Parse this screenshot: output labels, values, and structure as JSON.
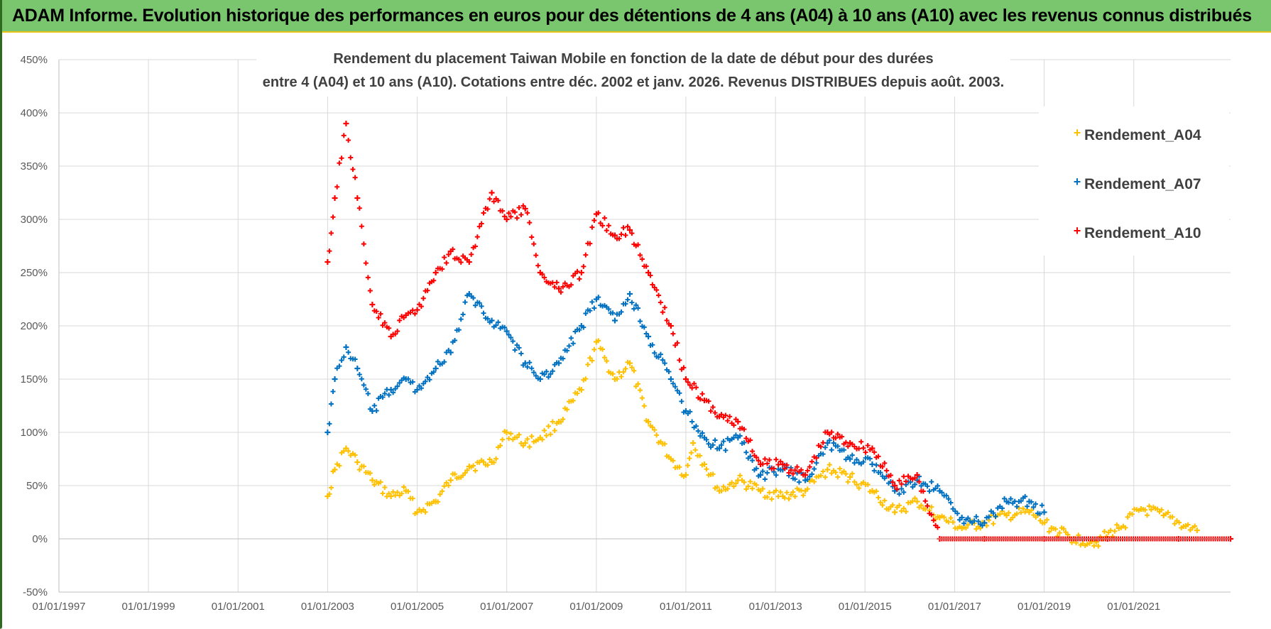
{
  "banner": {
    "text": "ADAM Informe. Evolution historique des performances en euros pour des détentions de 4 ans (A04) à 10 ans (A10) avec les revenus connus distribués"
  },
  "colors": {
    "banner_bg": "#79c66e",
    "A04": "#ffc000",
    "A07": "#0070c0",
    "A10": "#ff0000",
    "grid": "#d9d9d9"
  },
  "chart_data": {
    "type": "scatter",
    "title_lines": [
      "Rendement du placement Taiwan Mobile  en fonction de la date de début pour des durées",
      "entre 4 (A04) et 10 ans (A10). Cotations entre déc. 2002 et janv. 2026. Revenus DISTRIBUES depuis août. 2003."
    ],
    "xlabel": "",
    "ylabel": "",
    "x_ticks": [
      "01/01/1997",
      "01/01/1999",
      "01/01/2001",
      "01/01/2003",
      "01/01/2005",
      "01/01/2007",
      "01/01/2009",
      "01/01/2011",
      "01/01/2013",
      "01/01/2015",
      "01/01/2017",
      "01/01/2019",
      "01/01/2021"
    ],
    "x_range": [
      "1997-01-01",
      "2023-03-01"
    ],
    "y_ticks": [
      "-50%",
      "0%",
      "50%",
      "100%",
      "150%",
      "200%",
      "250%",
      "300%",
      "350%",
      "400%",
      "450%"
    ],
    "ylim": [
      -50,
      450
    ],
    "grid": true,
    "legend_position": "right",
    "marker": "+",
    "series": [
      {
        "name": "Rendement_A04",
        "color": "#ffc000",
        "points": [
          [
            "2003-01-01",
            40
          ],
          [
            "2003-03-01",
            65
          ],
          [
            "2003-06-01",
            85
          ],
          [
            "2003-09-01",
            72
          ],
          [
            "2004-01-01",
            55
          ],
          [
            "2004-06-01",
            40
          ],
          [
            "2004-10-01",
            45
          ],
          [
            "2005-01-01",
            25
          ],
          [
            "2005-06-01",
            35
          ],
          [
            "2005-10-01",
            55
          ],
          [
            "2006-03-01",
            68
          ],
          [
            "2006-09-01",
            72
          ],
          [
            "2007-01-01",
            100
          ],
          [
            "2007-06-01",
            90
          ],
          [
            "2007-10-01",
            95
          ],
          [
            "2008-03-01",
            110
          ],
          [
            "2008-09-01",
            140
          ],
          [
            "2009-01-01",
            185
          ],
          [
            "2009-06-01",
            150
          ],
          [
            "2009-10-01",
            165
          ],
          [
            "2010-03-01",
            110
          ],
          [
            "2010-09-01",
            75
          ],
          [
            "2011-01-01",
            60
          ],
          [
            "2011-03-01",
            90
          ],
          [
            "2011-06-01",
            70
          ],
          [
            "2011-10-01",
            45
          ],
          [
            "2012-03-01",
            55
          ],
          [
            "2012-09-01",
            45
          ],
          [
            "2013-03-01",
            40
          ],
          [
            "2013-09-01",
            45
          ],
          [
            "2014-03-01",
            65
          ],
          [
            "2014-09-01",
            58
          ],
          [
            "2015-03-01",
            45
          ],
          [
            "2015-09-01",
            25
          ],
          [
            "2016-03-01",
            35
          ],
          [
            "2016-09-01",
            20
          ],
          [
            "2017-03-01",
            10
          ],
          [
            "2017-09-01",
            15
          ],
          [
            "2018-03-01",
            22
          ],
          [
            "2018-09-01",
            25
          ],
          [
            "2019-03-01",
            10
          ],
          [
            "2019-09-01",
            0
          ],
          [
            "2020-03-01",
            -3
          ],
          [
            "2020-09-01",
            10
          ],
          [
            "2021-03-01",
            28
          ],
          [
            "2021-09-01",
            22
          ],
          [
            "2022-03-01",
            12
          ],
          [
            "2022-06-01",
            8
          ]
        ]
      },
      {
        "name": "Rendement_A07",
        "color": "#0070c0",
        "points": [
          [
            "2003-01-01",
            100
          ],
          [
            "2003-03-01",
            150
          ],
          [
            "2003-06-01",
            180
          ],
          [
            "2003-09-01",
            160
          ],
          [
            "2004-01-01",
            120
          ],
          [
            "2004-06-01",
            140
          ],
          [
            "2004-10-01",
            150
          ],
          [
            "2005-01-01",
            140
          ],
          [
            "2005-06-01",
            160
          ],
          [
            "2005-10-01",
            175
          ],
          [
            "2006-03-01",
            230
          ],
          [
            "2006-09-01",
            205
          ],
          [
            "2007-01-01",
            195
          ],
          [
            "2007-06-01",
            165
          ],
          [
            "2007-10-01",
            150
          ],
          [
            "2008-03-01",
            165
          ],
          [
            "2008-09-01",
            200
          ],
          [
            "2009-01-01",
            225
          ],
          [
            "2009-06-01",
            205
          ],
          [
            "2009-10-01",
            230
          ],
          [
            "2010-03-01",
            190
          ],
          [
            "2010-09-01",
            150
          ],
          [
            "2011-01-01",
            120
          ],
          [
            "2011-06-01",
            95
          ],
          [
            "2011-10-01",
            85
          ],
          [
            "2012-03-01",
            95
          ],
          [
            "2012-09-01",
            60
          ],
          [
            "2013-03-01",
            65
          ],
          [
            "2013-09-01",
            55
          ],
          [
            "2014-03-01",
            90
          ],
          [
            "2014-09-01",
            75
          ],
          [
            "2015-03-01",
            70
          ],
          [
            "2015-09-01",
            45
          ],
          [
            "2016-03-01",
            55
          ],
          [
            "2016-09-01",
            45
          ],
          [
            "2017-03-01",
            20
          ],
          [
            "2017-09-01",
            15
          ],
          [
            "2018-03-01",
            35
          ],
          [
            "2018-09-01",
            35
          ],
          [
            "2019-01-01",
            25
          ]
        ]
      },
      {
        "name": "Rendement_A10",
        "color": "#ff0000",
        "points": [
          [
            "2003-01-01",
            260
          ],
          [
            "2003-03-01",
            320
          ],
          [
            "2003-06-01",
            390
          ],
          [
            "2003-09-01",
            320
          ],
          [
            "2004-01-01",
            220
          ],
          [
            "2004-06-01",
            190
          ],
          [
            "2004-10-01",
            210
          ],
          [
            "2005-01-01",
            215
          ],
          [
            "2005-06-01",
            250
          ],
          [
            "2005-10-01",
            270
          ],
          [
            "2006-03-01",
            260
          ],
          [
            "2006-09-01",
            325
          ],
          [
            "2007-01-01",
            300
          ],
          [
            "2007-06-01",
            310
          ],
          [
            "2007-10-01",
            250
          ],
          [
            "2008-03-01",
            235
          ],
          [
            "2008-09-01",
            250
          ],
          [
            "2009-01-01",
            305
          ],
          [
            "2009-06-01",
            285
          ],
          [
            "2009-10-01",
            290
          ],
          [
            "2010-03-01",
            250
          ],
          [
            "2010-09-01",
            200
          ],
          [
            "2011-01-01",
            150
          ],
          [
            "2011-06-01",
            130
          ],
          [
            "2011-10-01",
            115
          ],
          [
            "2012-03-01",
            110
          ],
          [
            "2012-09-01",
            70
          ],
          [
            "2013-03-01",
            70
          ],
          [
            "2013-09-01",
            60
          ],
          [
            "2014-03-01",
            100
          ],
          [
            "2014-09-01",
            90
          ],
          [
            "2015-03-01",
            85
          ],
          [
            "2015-09-01",
            50
          ],
          [
            "2016-03-01",
            60
          ],
          [
            "2016-09-01",
            0
          ],
          [
            "2017-09-01",
            0
          ],
          [
            "2019-01-01",
            0
          ],
          [
            "2020-06-01",
            0
          ],
          [
            "2022-01-01",
            0
          ],
          [
            "2023-03-01",
            0
          ]
        ]
      }
    ]
  }
}
